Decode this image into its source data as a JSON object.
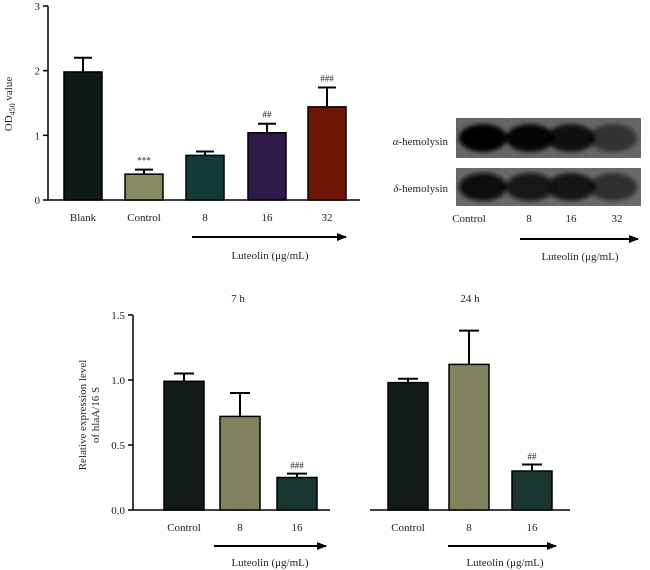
{
  "chart_data": [
    {
      "type": "bar",
      "panel": "top-left",
      "ylabel_main": "OD",
      "ylabel_sub": "450",
      "ylabel_rest": " value",
      "ylim": [
        0,
        3
      ],
      "yticks": [
        0,
        1,
        2,
        3
      ],
      "categories": [
        "Blank",
        "Control",
        "8",
        "16",
        "32"
      ],
      "values": [
        1.98,
        0.4,
        0.69,
        1.04,
        1.44
      ],
      "errors": [
        0.22,
        0.07,
        0.06,
        0.14,
        0.3
      ],
      "colors": [
        "#0f1a14",
        "#878a62",
        "#123a38",
        "#2d1a48",
        "#6e1608"
      ],
      "significance": [
        "",
        "***",
        "",
        "##",
        "###"
      ],
      "treatment_label": "Luteolin (μg/mL)"
    },
    {
      "type": "bar",
      "panel": "bottom",
      "ylabel_line1": "Relative expression level",
      "ylabel_line2": "of hlaA/16 S",
      "ylim": [
        0,
        1.5
      ],
      "yticks": [
        "0.0",
        "0.5",
        "1.0",
        "1.5"
      ],
      "groups": [
        {
          "title": "7 h",
          "categories": [
            "Control",
            "8",
            "16"
          ],
          "values": [
            0.99,
            0.72,
            0.25
          ],
          "errors": [
            0.06,
            0.18,
            0.03
          ],
          "colors": [
            "#111a15",
            "#80825e",
            "#18352f"
          ],
          "significance": [
            "",
            "",
            "###"
          ],
          "treatment_label": "Luteolin (μg/mL)"
        },
        {
          "title": "24 h",
          "categories": [
            "Control",
            "8",
            "16"
          ],
          "values": [
            0.98,
            1.12,
            0.3
          ],
          "errors": [
            0.03,
            0.26,
            0.05
          ],
          "colors": [
            "#111a15",
            "#80825e",
            "#18352f"
          ],
          "significance": [
            "",
            "",
            "##"
          ],
          "treatment_label": "Luteolin (μg/mL)"
        }
      ]
    }
  ],
  "blot": {
    "rows": [
      "α-hemolysin",
      "δ-hemolysin"
    ],
    "lanes": [
      "Control",
      "8",
      "16",
      "32"
    ],
    "row1_intensity": [
      1.0,
      0.95,
      0.85,
      0.5
    ],
    "row2_intensity": [
      1.0,
      0.9,
      0.8,
      0.55
    ],
    "treatment_label": "Luteolin (μg/mL)"
  }
}
